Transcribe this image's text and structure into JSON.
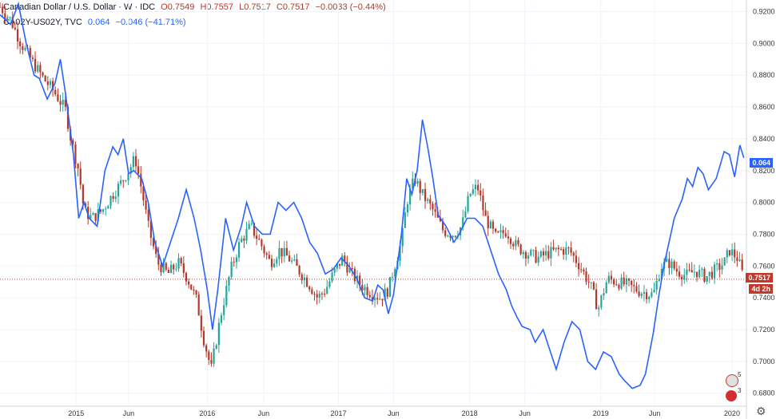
{
  "legend": {
    "main_title": "Canadian Dollar / U.S. Dollar · W · IDC",
    "o": "O0.7549",
    "h": "H0.7557",
    "l": "L0.7517",
    "c": "C0.7517",
    "change": "−0.0033 (−0.44%)",
    "spread_name": "CA02Y-US02Y, TVC",
    "spread_val": "0.064",
    "spread_change": "−0.046 (−41.71%)"
  },
  "tags": {
    "spread_last": "0.064",
    "price_last": "0.7517",
    "countdown": "4d 2h"
  },
  "flags": {
    "us_count": "5",
    "ca_count": "3"
  },
  "colors": {
    "up": "#26a69a",
    "down": "#b33a2a",
    "spread": "#2962ff",
    "price_line": "#c0392b"
  },
  "chart_data": {
    "type": "line",
    "y_axis": {
      "ylim": [
        0.6718,
        0.9273
      ],
      "ticks": [
        "0.9200",
        "0.9000",
        "0.8800",
        "0.8600",
        "0.8400",
        "0.8200",
        "0.8000",
        "0.7800",
        "0.7600",
        "0.7400",
        "0.7200",
        "0.7000",
        "0.6800"
      ]
    },
    "x_axis": {
      "xlim": [
        2014.42,
        2020.11
      ],
      "ticks": [
        {
          "x": 2015.0,
          "label": "2015"
        },
        {
          "x": 2015.4,
          "label": "Jun"
        },
        {
          "x": 2016.0,
          "label": "2016"
        },
        {
          "x": 2016.43,
          "label": "Jun"
        },
        {
          "x": 2017.0,
          "label": "2017"
        },
        {
          "x": 2017.42,
          "label": "Jun"
        },
        {
          "x": 2018.0,
          "label": "2018"
        },
        {
          "x": 2018.42,
          "label": "Jun"
        },
        {
          "x": 2019.0,
          "label": "2019"
        },
        {
          "x": 2019.41,
          "label": "Jun"
        },
        {
          "x": 2020.0,
          "label": "2020"
        }
      ]
    },
    "price_anchors": [
      [
        2014.42,
        0.923
      ],
      [
        2014.5,
        0.915
      ],
      [
        2014.58,
        0.9
      ],
      [
        2014.67,
        0.888
      ],
      [
        2014.75,
        0.878
      ],
      [
        2014.83,
        0.87
      ],
      [
        2014.92,
        0.858
      ],
      [
        2014.96,
        0.84
      ],
      [
        2015.02,
        0.82
      ],
      [
        2015.06,
        0.795
      ],
      [
        2015.12,
        0.79
      ],
      [
        2015.2,
        0.795
      ],
      [
        2015.28,
        0.805
      ],
      [
        2015.34,
        0.812
      ],
      [
        2015.4,
        0.82
      ],
      [
        2015.45,
        0.828
      ],
      [
        2015.5,
        0.808
      ],
      [
        2015.55,
        0.785
      ],
      [
        2015.62,
        0.762
      ],
      [
        2015.7,
        0.755
      ],
      [
        2015.78,
        0.762
      ],
      [
        2015.85,
        0.752
      ],
      [
        2015.92,
        0.738
      ],
      [
        2015.97,
        0.715
      ],
      [
        2016.03,
        0.695
      ],
      [
        2016.1,
        0.728
      ],
      [
        2016.18,
        0.758
      ],
      [
        2016.25,
        0.775
      ],
      [
        2016.33,
        0.785
      ],
      [
        2016.4,
        0.775
      ],
      [
        2016.48,
        0.762
      ],
      [
        2016.55,
        0.77
      ],
      [
        2016.62,
        0.765
      ],
      [
        2016.7,
        0.757
      ],
      [
        2016.78,
        0.748
      ],
      [
        2016.84,
        0.74
      ],
      [
        2016.9,
        0.745
      ],
      [
        2016.96,
        0.755
      ],
      [
        2017.03,
        0.765
      ],
      [
        2017.1,
        0.755
      ],
      [
        2017.17,
        0.748
      ],
      [
        2017.25,
        0.743
      ],
      [
        2017.32,
        0.74
      ],
      [
        2017.38,
        0.745
      ],
      [
        2017.42,
        0.758
      ],
      [
        2017.48,
        0.775
      ],
      [
        2017.52,
        0.8
      ],
      [
        2017.58,
        0.815
      ],
      [
        2017.64,
        0.805
      ],
      [
        2017.72,
        0.795
      ],
      [
        2017.8,
        0.782
      ],
      [
        2017.88,
        0.78
      ],
      [
        2017.94,
        0.785
      ],
      [
        2018.0,
        0.805
      ],
      [
        2018.06,
        0.81
      ],
      [
        2018.12,
        0.79
      ],
      [
        2018.2,
        0.778
      ],
      [
        2018.28,
        0.782
      ],
      [
        2018.36,
        0.772
      ],
      [
        2018.44,
        0.768
      ],
      [
        2018.52,
        0.765
      ],
      [
        2018.6,
        0.768
      ],
      [
        2018.68,
        0.77
      ],
      [
        2018.76,
        0.77
      ],
      [
        2018.84,
        0.76
      ],
      [
        2018.92,
        0.748
      ],
      [
        2018.98,
        0.733
      ],
      [
        2019.05,
        0.752
      ],
      [
        2019.12,
        0.75
      ],
      [
        2019.2,
        0.748
      ],
      [
        2019.3,
        0.744
      ],
      [
        2019.4,
        0.742
      ],
      [
        2019.46,
        0.76
      ],
      [
        2019.52,
        0.762
      ],
      [
        2019.58,
        0.757
      ],
      [
        2019.65,
        0.754
      ],
      [
        2019.72,
        0.757
      ],
      [
        2019.8,
        0.753
      ],
      [
        2019.88,
        0.758
      ],
      [
        2019.94,
        0.762
      ],
      [
        2019.98,
        0.77
      ],
      [
        2020.04,
        0.765
      ],
      [
        2020.07,
        0.758
      ],
      [
        2020.09,
        0.7517
      ]
    ],
    "spread_points": [
      [
        2014.42,
        0.918
      ],
      [
        2014.5,
        0.912
      ],
      [
        2014.56,
        0.925
      ],
      [
        2014.62,
        0.9
      ],
      [
        2014.68,
        0.88
      ],
      [
        2014.72,
        0.878
      ],
      [
        2014.78,
        0.865
      ],
      [
        2014.84,
        0.875
      ],
      [
        2014.88,
        0.89
      ],
      [
        2014.92,
        0.868
      ],
      [
        2014.98,
        0.83
      ],
      [
        2015.02,
        0.79
      ],
      [
        2015.06,
        0.8
      ],
      [
        2015.1,
        0.79
      ],
      [
        2015.16,
        0.785
      ],
      [
        2015.22,
        0.82
      ],
      [
        2015.28,
        0.835
      ],
      [
        2015.32,
        0.83
      ],
      [
        2015.36,
        0.84
      ],
      [
        2015.4,
        0.818
      ],
      [
        2015.44,
        0.82
      ],
      [
        2015.5,
        0.815
      ],
      [
        2015.55,
        0.8
      ],
      [
        2015.6,
        0.775
      ],
      [
        2015.66,
        0.76
      ],
      [
        2015.72,
        0.775
      ],
      [
        2015.78,
        0.79
      ],
      [
        2015.84,
        0.808
      ],
      [
        2015.9,
        0.79
      ],
      [
        2015.95,
        0.77
      ],
      [
        2016.0,
        0.745
      ],
      [
        2016.04,
        0.72
      ],
      [
        2016.08,
        0.745
      ],
      [
        2016.14,
        0.79
      ],
      [
        2016.2,
        0.77
      ],
      [
        2016.26,
        0.785
      ],
      [
        2016.3,
        0.8
      ],
      [
        2016.36,
        0.785
      ],
      [
        2016.42,
        0.78
      ],
      [
        2016.48,
        0.78
      ],
      [
        2016.54,
        0.8
      ],
      [
        2016.6,
        0.795
      ],
      [
        2016.66,
        0.8
      ],
      [
        2016.72,
        0.79
      ],
      [
        2016.78,
        0.775
      ],
      [
        2016.84,
        0.768
      ],
      [
        2016.9,
        0.755
      ],
      [
        2016.96,
        0.758
      ],
      [
        2017.02,
        0.765
      ],
      [
        2017.08,
        0.76
      ],
      [
        2017.14,
        0.752
      ],
      [
        2017.2,
        0.74
      ],
      [
        2017.26,
        0.738
      ],
      [
        2017.3,
        0.748
      ],
      [
        2017.34,
        0.745
      ],
      [
        2017.38,
        0.73
      ],
      [
        2017.42,
        0.742
      ],
      [
        2017.48,
        0.78
      ],
      [
        2017.52,
        0.815
      ],
      [
        2017.56,
        0.805
      ],
      [
        2017.6,
        0.82
      ],
      [
        2017.64,
        0.852
      ],
      [
        2017.68,
        0.835
      ],
      [
        2017.72,
        0.815
      ],
      [
        2017.76,
        0.792
      ],
      [
        2017.82,
        0.785
      ],
      [
        2017.88,
        0.775
      ],
      [
        2017.92,
        0.78
      ],
      [
        2017.98,
        0.79
      ],
      [
        2018.04,
        0.79
      ],
      [
        2018.1,
        0.785
      ],
      [
        2018.16,
        0.77
      ],
      [
        2018.22,
        0.755
      ],
      [
        2018.28,
        0.745
      ],
      [
        2018.32,
        0.735
      ],
      [
        2018.36,
        0.728
      ],
      [
        2018.4,
        0.722
      ],
      [
        2018.46,
        0.72
      ],
      [
        2018.5,
        0.712
      ],
      [
        2018.56,
        0.72
      ],
      [
        2018.62,
        0.705
      ],
      [
        2018.66,
        0.695
      ],
      [
        2018.72,
        0.712
      ],
      [
        2018.78,
        0.725
      ],
      [
        2018.84,
        0.72
      ],
      [
        2018.9,
        0.7
      ],
      [
        2018.96,
        0.695
      ],
      [
        2019.02,
        0.706
      ],
      [
        2019.08,
        0.703
      ],
      [
        2019.14,
        0.692
      ],
      [
        2019.18,
        0.688
      ],
      [
        2019.24,
        0.683
      ],
      [
        2019.3,
        0.685
      ],
      [
        2019.34,
        0.692
      ],
      [
        2019.4,
        0.718
      ],
      [
        2019.44,
        0.74
      ],
      [
        2019.48,
        0.76
      ],
      [
        2019.52,
        0.775
      ],
      [
        2019.56,
        0.79
      ],
      [
        2019.62,
        0.802
      ],
      [
        2019.66,
        0.815
      ],
      [
        2019.7,
        0.81
      ],
      [
        2019.74,
        0.822
      ],
      [
        2019.78,
        0.818
      ],
      [
        2019.82,
        0.808
      ],
      [
        2019.88,
        0.815
      ],
      [
        2019.94,
        0.832
      ],
      [
        2019.98,
        0.83
      ],
      [
        2020.02,
        0.816
      ],
      [
        2020.06,
        0.836
      ],
      [
        2020.09,
        0.828
      ]
    ],
    "last_price": 0.7517,
    "last_spread": 0.064
  }
}
